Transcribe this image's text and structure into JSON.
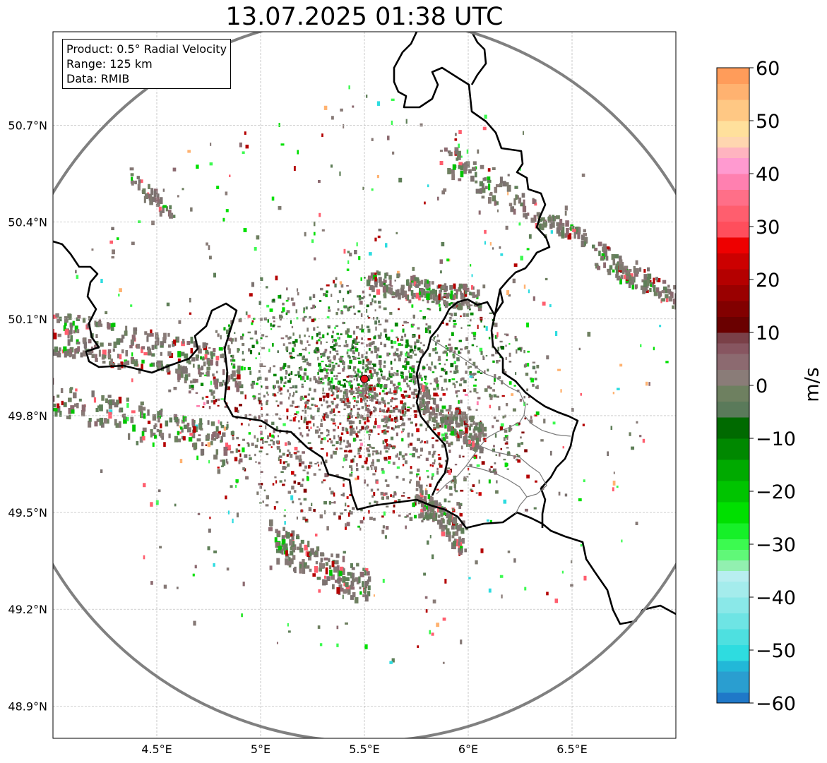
{
  "title": "13.07.2025 01:38 UTC",
  "info_lines": [
    "Product: 0.5° Radial Velocity",
    "Range: 125 km",
    "Data: RMIB"
  ],
  "radar_site": {
    "lon": 5.5,
    "lat": 49.914,
    "color": "#e8141c"
  },
  "range_km": 125,
  "extent": {
    "lon_min": 4.0,
    "lon_max": 7.0,
    "lat_min": 48.8,
    "lat_max": 50.99
  },
  "lon_ticks": [
    {
      "value": 4.5,
      "label": "4.5°E"
    },
    {
      "value": 5.0,
      "label": "5°E"
    },
    {
      "value": 5.5,
      "label": "5.5°E"
    },
    {
      "value": 6.0,
      "label": "6°E"
    },
    {
      "value": 6.5,
      "label": "6.5°E"
    }
  ],
  "lat_ticks": [
    {
      "value": 50.7,
      "label": "50.7°N"
    },
    {
      "value": 50.4,
      "label": "50.4°N"
    },
    {
      "value": 50.1,
      "label": "50.1°N"
    },
    {
      "value": 49.8,
      "label": "49.8°N"
    },
    {
      "value": 49.5,
      "label": "49.5°N"
    },
    {
      "value": 49.2,
      "label": "49.2°N"
    },
    {
      "value": 48.9,
      "label": "48.9°N"
    }
  ],
  "colorbar": {
    "label": "m/s",
    "min": -60,
    "max": 60,
    "ticks": [
      {
        "value": 60,
        "label": "60"
      },
      {
        "value": 50,
        "label": "50"
      },
      {
        "value": 40,
        "label": "40"
      },
      {
        "value": 30,
        "label": "30"
      },
      {
        "value": 20,
        "label": "20"
      },
      {
        "value": 10,
        "label": "10"
      },
      {
        "value": 0,
        "label": "0"
      },
      {
        "value": -10,
        "label": "−10"
      },
      {
        "value": -20,
        "label": "−20"
      },
      {
        "value": -30,
        "label": "−30"
      },
      {
        "value": -40,
        "label": "−40"
      },
      {
        "value": -50,
        "label": "−50"
      },
      {
        "value": -60,
        "label": "−60"
      }
    ],
    "bands": [
      {
        "from": -60,
        "to": -58,
        "color": "#1f78c8"
      },
      {
        "from": -58,
        "to": -54,
        "color": "#2a9ed0"
      },
      {
        "from": -54,
        "to": -52,
        "color": "#22b8d8"
      },
      {
        "from": -52,
        "to": -49,
        "color": "#2edce0"
      },
      {
        "from": -49,
        "to": -46,
        "color": "#4ee0e0"
      },
      {
        "from": -46,
        "to": -43,
        "color": "#6ee4e4"
      },
      {
        "from": -43,
        "to": -40,
        "color": "#8ae8e8"
      },
      {
        "from": -40,
        "to": -37,
        "color": "#a4ecec"
      },
      {
        "from": -37,
        "to": -35,
        "color": "#b8eef0"
      },
      {
        "from": -35,
        "to": -33,
        "color": "#92f0b0"
      },
      {
        "from": -33,
        "to": -31,
        "color": "#60f878"
      },
      {
        "from": -31,
        "to": -29,
        "color": "#3cfa50"
      },
      {
        "from": -29,
        "to": -26,
        "color": "#16f028"
      },
      {
        "from": -26,
        "to": -22,
        "color": "#00e000"
      },
      {
        "from": -22,
        "to": -18,
        "color": "#00c400"
      },
      {
        "from": -18,
        "to": -14,
        "color": "#00aa00"
      },
      {
        "from": -14,
        "to": -10,
        "color": "#008800"
      },
      {
        "from": -10,
        "to": -6,
        "color": "#006a00"
      },
      {
        "from": -6,
        "to": -3,
        "color": "#5a7a5a"
      },
      {
        "from": -3,
        "to": 0,
        "color": "#6e8060"
      },
      {
        "from": 0,
        "to": 3,
        "color": "#8a7c78"
      },
      {
        "from": 3,
        "to": 6,
        "color": "#8c6a70"
      },
      {
        "from": 6,
        "to": 8,
        "color": "#875560"
      },
      {
        "from": 8,
        "to": 10,
        "color": "#7a4048"
      },
      {
        "from": 10,
        "to": 13,
        "color": "#6a0000"
      },
      {
        "from": 13,
        "to": 16,
        "color": "#820000"
      },
      {
        "from": 16,
        "to": 19,
        "color": "#9a0000"
      },
      {
        "from": 19,
        "to": 22,
        "color": "#b40000"
      },
      {
        "from": 22,
        "to": 25,
        "color": "#cc0000"
      },
      {
        "from": 25,
        "to": 28,
        "color": "#ee0000"
      },
      {
        "from": 28,
        "to": 31,
        "color": "#ff4e5c"
      },
      {
        "from": 31,
        "to": 34,
        "color": "#ff5e6e"
      },
      {
        "from": 34,
        "to": 37,
        "color": "#ff6f88"
      },
      {
        "from": 37,
        "to": 40,
        "color": "#ff80b0"
      },
      {
        "from": 40,
        "to": 43,
        "color": "#ff9ad0"
      },
      {
        "from": 43,
        "to": 45,
        "color": "#ffb4c0"
      },
      {
        "from": 45,
        "to": 47,
        "color": "#ffd6b0"
      },
      {
        "from": 47,
        "to": 50,
        "color": "#ffe09c"
      },
      {
        "from": 50,
        "to": 54,
        "color": "#ffc884"
      },
      {
        "from": 54,
        "to": 57,
        "color": "#ffb270"
      },
      {
        "from": 57,
        "to": 60,
        "color": "#ff9c5a"
      }
    ]
  }
}
